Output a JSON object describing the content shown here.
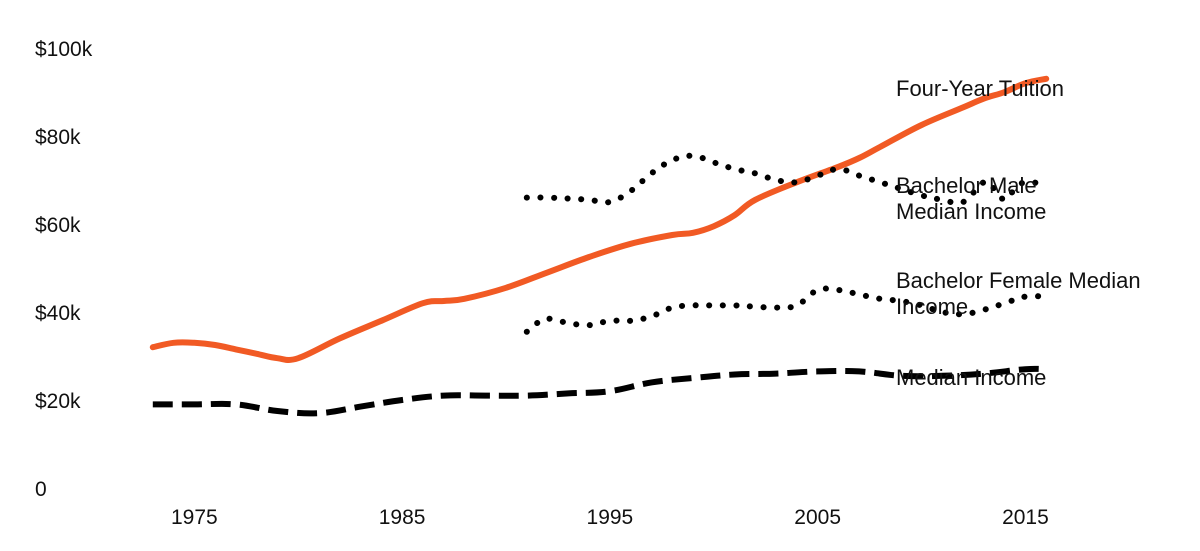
{
  "chart_data": {
    "type": "line",
    "title": "",
    "xlabel": "",
    "ylabel": "",
    "xlim": [
      1972,
      2017
    ],
    "ylim": [
      0,
      100000
    ],
    "x_ticks": [
      {
        "value": 1975,
        "label": "1975"
      },
      {
        "value": 1985,
        "label": "1985"
      },
      {
        "value": 1995,
        "label": "1995"
      },
      {
        "value": 2005,
        "label": "2005"
      },
      {
        "value": 2015,
        "label": "2015"
      }
    ],
    "y_ticks": [
      {
        "value": 0,
        "label": "0"
      },
      {
        "value": 20000,
        "label": "$20k"
      },
      {
        "value": 40000,
        "label": "$40k"
      },
      {
        "value": 60000,
        "label": "$60k"
      },
      {
        "value": 80000,
        "label": "$80k"
      },
      {
        "value": 100000,
        "label": "$100k"
      }
    ],
    "grid": false,
    "legend": "direct labels at right end of each line",
    "series": [
      {
        "name": "Four-Year Tuition",
        "style": "solid",
        "color": "#f15a24",
        "x": [
          1973,
          1974,
          1975,
          1976,
          1977,
          1978,
          1979,
          1980,
          1982,
          1984,
          1986,
          1987,
          1988,
          1990,
          1992,
          1994,
          1996,
          1998,
          1999,
          2000,
          2001,
          2002,
          2004,
          2006,
          2007,
          2008,
          2010,
          2012,
          2013,
          2014,
          2015,
          2016
        ],
        "y": [
          32000,
          33000,
          33000,
          32500,
          31500,
          30500,
          29500,
          29500,
          34000,
          38000,
          42000,
          42500,
          43000,
          45500,
          49000,
          52500,
          55500,
          57500,
          58000,
          59500,
          62000,
          65500,
          69500,
          73000,
          75000,
          77500,
          82500,
          86500,
          88500,
          90000,
          92000,
          93000
        ]
      },
      {
        "name": "Bachelor Male Median Income",
        "style": "dotted",
        "color": "#000000",
        "x": [
          1991,
          1992,
          1993,
          1994,
          1995,
          1996,
          1997,
          1998,
          1999,
          2000,
          2001,
          2002,
          2003,
          2004,
          2005,
          2006,
          2007,
          2008,
          2009,
          2010,
          2011,
          2012,
          2013,
          2013.5,
          2014,
          2014.5,
          2015,
          2016
        ],
        "y": [
          66000,
          66000,
          65800,
          65500,
          65000,
          67500,
          71500,
          74500,
          75500,
          74000,
          72500,
          71500,
          70000,
          69500,
          71000,
          72500,
          71000,
          69500,
          68000,
          66500,
          65500,
          65000,
          69500,
          68000,
          65500,
          68000,
          69500,
          69000
        ]
      },
      {
        "name": "Bachelor Female Median Income",
        "style": "dotted",
        "color": "#000000",
        "x": [
          1991,
          1991.5,
          1992,
          1993,
          1994,
          1995,
          1996,
          1997,
          1998,
          1999,
          2000,
          2001,
          2002,
          2003,
          2004,
          2005,
          2006,
          2007,
          2008,
          2009,
          2010,
          2011,
          2012,
          2013,
          2014,
          2015,
          2016
        ],
        "y": [
          35500,
          37500,
          38500,
          37500,
          37000,
          38000,
          38000,
          39000,
          41000,
          41500,
          41500,
          41500,
          41200,
          41000,
          41500,
          45000,
          45000,
          44000,
          43000,
          42500,
          41500,
          40000,
          39500,
          40500,
          42000,
          43500,
          43500
        ]
      },
      {
        "name": "Median Income",
        "style": "dashed",
        "color": "#000000",
        "x": [
          1973,
          1975,
          1977,
          1979,
          1981,
          1983,
          1985,
          1987,
          1989,
          1991,
          1993,
          1995,
          1997,
          1999,
          2001,
          2003,
          2005,
          2007,
          2009,
          2011,
          2013,
          2015,
          2016
        ],
        "y": [
          19000,
          19000,
          19000,
          17500,
          17000,
          18500,
          20000,
          21000,
          21000,
          21000,
          21500,
          22000,
          24000,
          25000,
          25800,
          26000,
          26500,
          26500,
          25500,
          25500,
          26000,
          27000,
          27000
        ]
      }
    ]
  }
}
